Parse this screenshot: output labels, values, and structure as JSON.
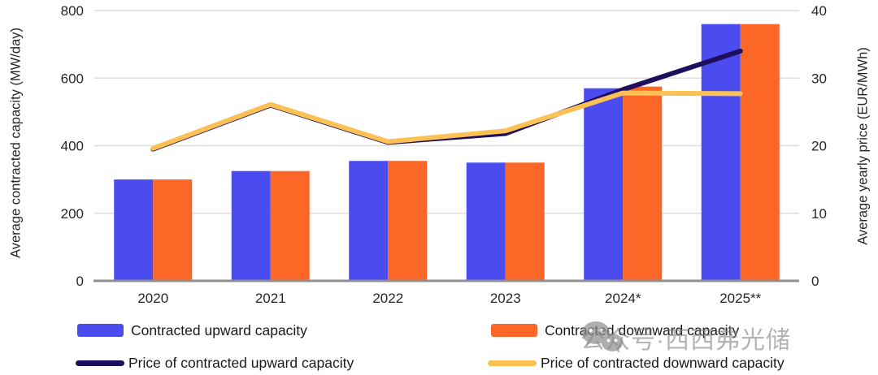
{
  "chart_data": {
    "type": "bar",
    "title": "",
    "categories": [
      "2020",
      "2021",
      "2022",
      "2023",
      "2024*",
      "2025**"
    ],
    "bar_series": [
      {
        "name": "Contracted upward capacity",
        "color": "#4a4cf0",
        "axis": "left",
        "values": [
          300,
          325,
          355,
          350,
          570,
          760
        ]
      },
      {
        "name": "Contracted downward capacity",
        "color": "#fc6626",
        "axis": "left",
        "values": [
          300,
          325,
          355,
          350,
          575,
          760
        ]
      }
    ],
    "line_series": [
      {
        "name": "Price of contracted upward capacity",
        "color": "#1e0e5e",
        "axis": "right",
        "values": [
          19.5,
          26.0,
          20.5,
          21.8,
          28.3,
          34.0
        ]
      },
      {
        "name": "Price of contracted downward capacity",
        "color": "#fbc154",
        "axis": "right",
        "values": [
          19.6,
          26.1,
          20.6,
          22.2,
          27.8,
          27.7
        ]
      }
    ],
    "left_axis": {
      "label": "Average contracted capacity (MW/day)",
      "min": 0,
      "max": 800,
      "ticks": [
        0,
        200,
        400,
        600,
        800
      ]
    },
    "right_axis": {
      "label": "Average yearly price (EUR/MWh)",
      "min": 0,
      "max": 40,
      "ticks": [
        0,
        10,
        20,
        30,
        40
      ]
    },
    "grid": "horizontal",
    "legend_position": "bottom"
  },
  "watermark": {
    "icon": "wechat-icon",
    "text": "公众号·西西弗光储"
  },
  "colors": {
    "grid": "#dedede",
    "axis_line": "#8f8f8f",
    "text": "#262626",
    "watermark": "#a0a0a0"
  }
}
